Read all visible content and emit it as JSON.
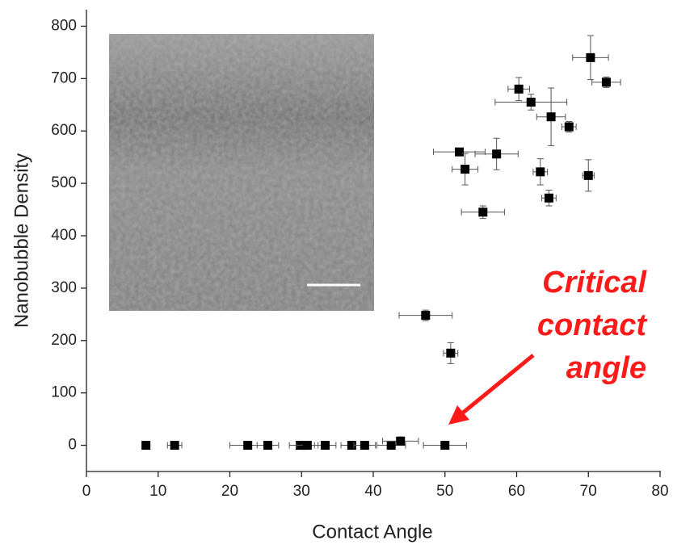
{
  "chart_data": {
    "type": "scatter",
    "xlabel": "Contact Angle",
    "ylabel": "Nanobubble Density",
    "xlim": [
      0,
      80
    ],
    "ylim": [
      -50,
      850
    ],
    "xticks": [
      0,
      10,
      20,
      30,
      40,
      50,
      60,
      70,
      80
    ],
    "yticks": [
      0,
      100,
      200,
      300,
      400,
      500,
      600,
      700,
      800
    ],
    "series": [
      {
        "color": "#000000",
        "x": [
          8.3,
          12.3,
          22.5,
          25.3,
          29.8,
          30.3,
          30.8,
          33.3,
          37,
          38.8,
          42.5,
          43.8,
          50,
          47.3,
          50.8,
          52,
          52.8,
          55.3,
          57.2,
          60.3,
          62,
          64.8,
          63.3,
          64.5,
          67.3,
          70,
          70.3,
          72.5
        ],
        "values": [
          0,
          0,
          0,
          0,
          0,
          0,
          0,
          0,
          0,
          0,
          0,
          8,
          0,
          248,
          176,
          560,
          527,
          445,
          556,
          680,
          655,
          627,
          522,
          472,
          608,
          515,
          740,
          693
        ],
        "xerr": [
          0.5,
          1,
          2.5,
          1.5,
          1.5,
          1,
          1.5,
          1.5,
          1.5,
          1.5,
          2,
          2.5,
          3,
          3.7,
          1,
          3.6,
          1.8,
          3,
          3,
          1.5,
          5,
          2,
          1,
          1,
          1,
          0.8,
          2.5,
          2
        ],
        "yerr": [
          3,
          3,
          3,
          3,
          3,
          3,
          3,
          3,
          3,
          3,
          3,
          8,
          3,
          10,
          20,
          5,
          30,
          12,
          30,
          22,
          15,
          55,
          25,
          15,
          10,
          30,
          42,
          10
        ]
      }
    ],
    "annotation": {
      "lines": [
        "Critical",
        "contact",
        "angle"
      ],
      "color": "#ff1a1a"
    }
  }
}
